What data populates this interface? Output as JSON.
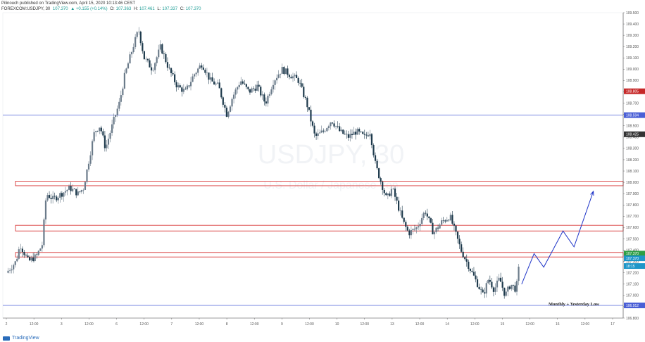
{
  "header": {
    "line1": "Pilinouch published on TradingView.com, April 15, 2020 10:13:46 CEST",
    "symbol": "FOREXCOM:USDJPY, 30",
    "last": "107.370",
    "change": "▲ +0.155 (+0.14%)",
    "o_label": "O:",
    "o_val": "107.363",
    "h_label": "H:",
    "h_val": "107.461",
    "l_label": "L:",
    "l_val": "107.337",
    "c_label": "C:",
    "c_val": "107.370"
  },
  "watermark": {
    "symbol": "USDJPY, 30",
    "description": "U.S. Dollar / Japanese Yen"
  },
  "annotation": "Monthly + Yesterday Low",
  "footer": {
    "brand": "TradingView"
  },
  "colors": {
    "up_candle": "#6b7b8a",
    "down_candle": "#1e3a4c",
    "zone_border": "#d93a3a",
    "level_line": "#4a5fd6",
    "projection": "#1f35c8"
  },
  "chart_data": {
    "type": "candlestick",
    "title": "USDJPY, 30",
    "ylim": [
      106.8,
      109.5
    ],
    "y_ticks": [
      "109.500",
      "109.400",
      "109.300",
      "109.200",
      "109.100",
      "109.000",
      "108.900",
      "108.800",
      "108.700",
      "108.600",
      "108.500",
      "108.400",
      "108.300",
      "108.200",
      "108.100",
      "108.000",
      "107.900",
      "107.800",
      "107.700",
      "107.600",
      "107.500",
      "107.400",
      "107.300",
      "107.200",
      "107.100",
      "107.000",
      "106.900",
      "106.800"
    ],
    "x_ticks": [
      "2",
      "12:00",
      "3",
      "12:00",
      "6",
      "12:00",
      "7",
      "12:00",
      "8",
      "12:00",
      "9",
      "12:00",
      "10",
      "12:00",
      "13",
      "12:00",
      "14",
      "12:00",
      "15",
      "12:00",
      "16",
      "12:00",
      "17"
    ],
    "x_tick_pos": [
      0,
      1,
      2,
      3,
      4,
      5,
      6,
      7,
      8,
      9,
      10,
      11,
      12,
      13,
      14,
      15,
      16,
      17,
      18,
      19,
      20,
      21,
      22
    ],
    "price_path": [
      [
        0,
        107.2
      ],
      [
        0.35,
        107.3
      ],
      [
        0.5,
        107.45
      ],
      [
        0.8,
        107.3
      ],
      [
        1.1,
        107.35
      ],
      [
        1.3,
        107.45
      ],
      [
        1.45,
        107.9
      ],
      [
        1.7,
        107.85
      ],
      [
        2.0,
        107.9
      ],
      [
        2.3,
        107.95
      ],
      [
        2.6,
        107.9
      ],
      [
        2.8,
        107.95
      ],
      [
        3.0,
        108.2
      ],
      [
        3.2,
        108.45
      ],
      [
        3.4,
        108.5
      ],
      [
        3.6,
        108.3
      ],
      [
        3.9,
        108.55
      ],
      [
        4.1,
        108.7
      ],
      [
        4.3,
        108.95
      ],
      [
        4.6,
        109.2
      ],
      [
        4.8,
        109.35
      ],
      [
        5.0,
        109.1
      ],
      [
        5.3,
        109.0
      ],
      [
        5.6,
        109.2
      ],
      [
        5.9,
        109.0
      ],
      [
        6.2,
        108.85
      ],
      [
        6.5,
        108.8
      ],
      [
        6.8,
        108.95
      ],
      [
        7.1,
        109.05
      ],
      [
        7.4,
        108.9
      ],
      [
        7.7,
        108.85
      ],
      [
        8.0,
        108.6
      ],
      [
        8.2,
        108.75
      ],
      [
        8.5,
        108.9
      ],
      [
        8.8,
        108.8
      ],
      [
        9.1,
        108.85
      ],
      [
        9.4,
        108.7
      ],
      [
        9.7,
        108.9
      ],
      [
        10.0,
        109.0
      ],
      [
        10.3,
        108.95
      ],
      [
        10.6,
        108.9
      ],
      [
        10.9,
        108.7
      ],
      [
        11.2,
        108.4
      ],
      [
        11.5,
        108.45
      ],
      [
        11.8,
        108.55
      ],
      [
        12.1,
        108.45
      ],
      [
        12.4,
        108.4
      ],
      [
        12.7,
        108.45
      ],
      [
        13.0,
        108.4
      ],
      [
        13.2,
        108.45
      ],
      [
        13.4,
        108.15
      ],
      [
        13.6,
        108.0
      ],
      [
        13.8,
        107.85
      ],
      [
        14.0,
        107.95
      ],
      [
        14.2,
        107.8
      ],
      [
        14.4,
        107.65
      ],
      [
        14.6,
        107.55
      ],
      [
        14.9,
        107.6
      ],
      [
        15.2,
        107.75
      ],
      [
        15.5,
        107.55
      ],
      [
        15.8,
        107.65
      ],
      [
        16.1,
        107.7
      ],
      [
        16.3,
        107.55
      ],
      [
        16.5,
        107.4
      ],
      [
        16.7,
        107.3
      ],
      [
        16.9,
        107.2
      ],
      [
        17.1,
        107.1
      ],
      [
        17.3,
        107.0
      ],
      [
        17.5,
        107.15
      ],
      [
        17.7,
        107.05
      ],
      [
        17.9,
        107.15
      ],
      [
        18.1,
        107.0
      ],
      [
        18.3,
        107.1
      ],
      [
        18.5,
        107.05
      ],
      [
        18.65,
        107.35
      ]
    ],
    "zones": [
      {
        "top": 108.01,
        "bottom": 107.97
      },
      {
        "top": 107.62,
        "bottom": 107.57
      },
      {
        "top": 107.38,
        "bottom": 107.34
      }
    ],
    "h_lines": [
      {
        "price": 108.594,
        "label": "108.594"
      },
      {
        "price": 106.912,
        "label": "106.912"
      }
    ],
    "price_labels": [
      {
        "price": 108.805,
        "label": "108.805",
        "color": "#c62828"
      },
      {
        "price": 108.425,
        "label": "108.425",
        "color": "#333333"
      },
      {
        "price": 107.37,
        "label": "107.370",
        "color": "#2e9e44"
      },
      {
        "price": 107.328,
        "label": "107.370",
        "color": "#1e96c8"
      },
      {
        "price": 107.26,
        "label": "18:15",
        "color": "#1e96c8"
      }
    ],
    "projection_path": [
      [
        18.7,
        107.1
      ],
      [
        19.15,
        107.37
      ],
      [
        19.5,
        107.25
      ],
      [
        20.2,
        107.57
      ],
      [
        20.6,
        107.43
      ],
      [
        21.3,
        107.92
      ]
    ]
  }
}
